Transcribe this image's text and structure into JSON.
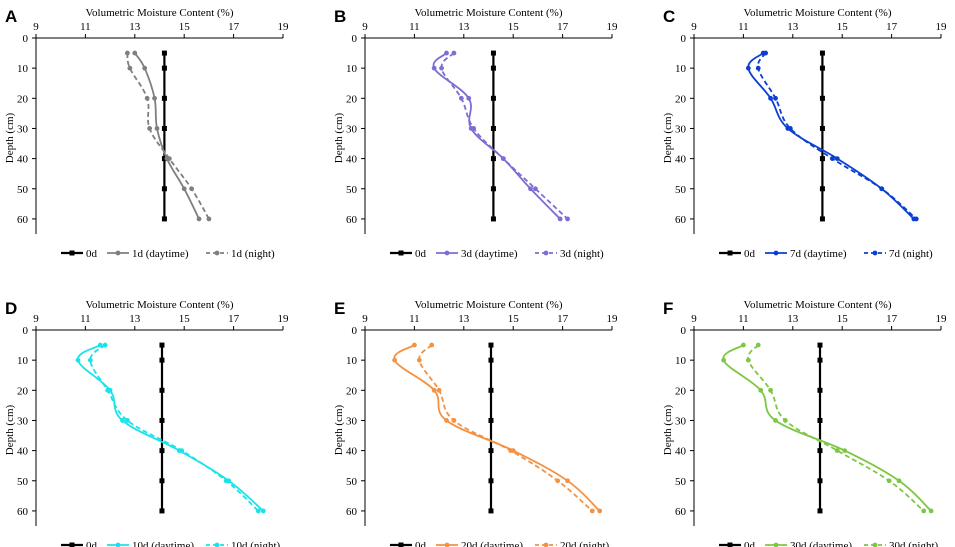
{
  "chart_data": [
    {
      "panel": "A",
      "type": "line",
      "color": "#7f7f7f",
      "xlabel": "Volumetric Moisture Content (%)",
      "ylabel": "Depth (cm)",
      "xticks": [
        9,
        11,
        13,
        15,
        17,
        19
      ],
      "yticks": [
        0,
        10,
        20,
        30,
        40,
        50,
        60
      ],
      "xlim": [
        9,
        19
      ],
      "ylim": [
        0,
        65
      ],
      "depths": [
        5,
        10,
        20,
        30,
        40,
        50,
        60
      ],
      "series": [
        {
          "name": "0d",
          "style": "solid-square",
          "values": [
            14.2,
            14.2,
            14.2,
            14.2,
            14.2,
            14.2,
            14.2
          ]
        },
        {
          "name": "1d (daytime)",
          "style": "solid",
          "values": [
            13.0,
            13.4,
            13.8,
            13.9,
            14.3,
            15.0,
            15.6
          ]
        },
        {
          "name": "1d (night)",
          "style": "dashed",
          "values": [
            12.7,
            12.8,
            13.5,
            13.6,
            14.4,
            15.3,
            16.0
          ]
        }
      ]
    },
    {
      "panel": "B",
      "type": "line",
      "color": "#7b6fd4",
      "xlabel": "Volumetric Moisture Content (%)",
      "ylabel": "Depth (cm)",
      "xticks": [
        9,
        11,
        13,
        15,
        17,
        19
      ],
      "yticks": [
        0,
        10,
        20,
        30,
        40,
        50,
        60
      ],
      "xlim": [
        9,
        19
      ],
      "ylim": [
        0,
        65
      ],
      "depths": [
        5,
        10,
        20,
        30,
        40,
        50,
        60
      ],
      "series": [
        {
          "name": "0d",
          "style": "solid-square",
          "values": [
            14.2,
            14.2,
            14.2,
            14.2,
            14.2,
            14.2,
            14.2
          ]
        },
        {
          "name": "3d (daytime)",
          "style": "solid",
          "values": [
            12.3,
            11.8,
            13.2,
            13.3,
            14.6,
            15.7,
            16.9
          ]
        },
        {
          "name": "3d (night)",
          "style": "dashed",
          "values": [
            12.6,
            12.1,
            12.9,
            13.4,
            14.6,
            15.9,
            17.2
          ]
        }
      ]
    },
    {
      "panel": "C",
      "type": "line",
      "color": "#0b3fd1",
      "xlabel": "Volumetric Moisture Content (%)",
      "ylabel": "Depth (cm)",
      "xticks": [
        9,
        11,
        13,
        15,
        17,
        19
      ],
      "yticks": [
        0,
        10,
        20,
        30,
        40,
        50,
        60
      ],
      "xlim": [
        9,
        19
      ],
      "ylim": [
        0,
        65
      ],
      "depths": [
        5,
        10,
        20,
        30,
        40,
        50,
        60
      ],
      "series": [
        {
          "name": "0d",
          "style": "solid-square",
          "values": [
            14.2,
            14.2,
            14.2,
            14.2,
            14.2,
            14.2,
            14.2
          ]
        },
        {
          "name": "7d (daytime)",
          "style": "solid",
          "values": [
            11.8,
            11.2,
            12.1,
            12.8,
            14.8,
            16.6,
            17.9
          ]
        },
        {
          "name": "7d (night)",
          "style": "dashed",
          "values": [
            11.9,
            11.6,
            12.3,
            12.9,
            14.6,
            16.6,
            18.0
          ]
        }
      ]
    },
    {
      "panel": "D",
      "type": "line",
      "color": "#19e3ea",
      "xlabel": "Volumetric Moisture Content (%)",
      "ylabel": "Depth (cm)",
      "xticks": [
        9,
        11,
        13,
        15,
        17,
        19
      ],
      "yticks": [
        0,
        10,
        20,
        30,
        40,
        50,
        60
      ],
      "xlim": [
        9,
        19
      ],
      "ylim": [
        0,
        65
      ],
      "depths": [
        5,
        10,
        20,
        30,
        40,
        50,
        60
      ],
      "series": [
        {
          "name": "0d",
          "style": "solid-square",
          "values": [
            14.1,
            14.1,
            14.1,
            14.1,
            14.1,
            14.1,
            14.1
          ]
        },
        {
          "name": "10d (daytime)",
          "style": "solid",
          "values": [
            11.6,
            10.7,
            12.0,
            12.5,
            14.8,
            16.8,
            18.2
          ]
        },
        {
          "name": "10d (night)",
          "style": "dashed",
          "values": [
            11.8,
            11.2,
            11.9,
            12.7,
            14.9,
            16.7,
            18.0
          ]
        }
      ]
    },
    {
      "panel": "E",
      "type": "line",
      "color": "#f39243",
      "xlabel": "Volumetric Moisture Content (%)",
      "ylabel": "Depth (cm)",
      "xticks": [
        9,
        11,
        13,
        15,
        17,
        19
      ],
      "yticks": [
        0,
        10,
        20,
        30,
        40,
        50,
        60
      ],
      "xlim": [
        9,
        19
      ],
      "ylim": [
        0,
        65
      ],
      "depths": [
        5,
        10,
        20,
        30,
        40,
        50,
        60
      ],
      "series": [
        {
          "name": "0d",
          "style": "solid-square",
          "values": [
            14.1,
            14.1,
            14.1,
            14.1,
            14.1,
            14.1,
            14.1
          ]
        },
        {
          "name": "20d (daytime)",
          "style": "solid",
          "values": [
            11.0,
            10.2,
            11.8,
            12.3,
            15.0,
            17.2,
            18.5
          ]
        },
        {
          "name": "20d (night)",
          "style": "dashed",
          "values": [
            11.7,
            11.2,
            12.0,
            12.6,
            14.9,
            16.8,
            18.2
          ]
        }
      ]
    },
    {
      "panel": "F",
      "type": "line",
      "color": "#7dc744",
      "xlabel": "Volumetric Moisture Content (%)",
      "ylabel": "Depth (cm)",
      "xticks": [
        9,
        11,
        13,
        15,
        17,
        19
      ],
      "yticks": [
        0,
        10,
        20,
        30,
        40,
        50,
        60
      ],
      "xlim": [
        9,
        19
      ],
      "ylim": [
        0,
        65
      ],
      "depths": [
        5,
        10,
        20,
        30,
        40,
        50,
        60
      ],
      "series": [
        {
          "name": "0d",
          "style": "solid-square",
          "values": [
            14.1,
            14.1,
            14.1,
            14.1,
            14.1,
            14.1,
            14.1
          ]
        },
        {
          "name": "30d (daytime)",
          "style": "solid",
          "values": [
            11.0,
            10.2,
            11.7,
            12.3,
            15.1,
            17.3,
            18.6
          ]
        },
        {
          "name": "30d (night)",
          "style": "dashed",
          "values": [
            11.6,
            11.2,
            12.1,
            12.7,
            14.8,
            16.9,
            18.3
          ]
        }
      ]
    }
  ]
}
